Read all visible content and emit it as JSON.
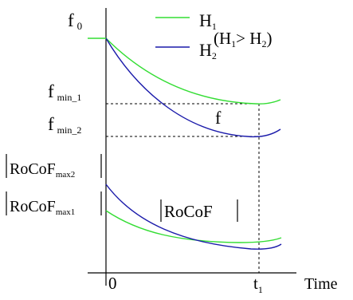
{
  "labels": {
    "f0_main": "f",
    "f0_sub": "0",
    "fmin1_main": "f",
    "fmin1_sub": "min_1",
    "fmin2_main": "f",
    "fmin2_sub": "min_2",
    "rocof_max2_main": "RoCoF",
    "rocof_max2_sub": "max2",
    "rocof_max1_main": "RoCoF",
    "rocof_max1_sub": "max1",
    "f_curve_label": "f",
    "rocof_curve_label": "RoCoF",
    "origin_tick": "0",
    "t1_main": "t",
    "t1_sub": "1",
    "x_axis_label": "Time"
  },
  "legend": {
    "h1_main": "H",
    "h1_sub": "1",
    "h2_main": "H",
    "h2_sub": "2",
    "relation_open": "(H",
    "relation_sub1": "1",
    "relation_mid": "> H",
    "relation_sub2": "2",
    "relation_close": ")"
  },
  "colors": {
    "h1": "#33dd33",
    "h2": "#1a1aaa",
    "axes": "#000000"
  }
}
